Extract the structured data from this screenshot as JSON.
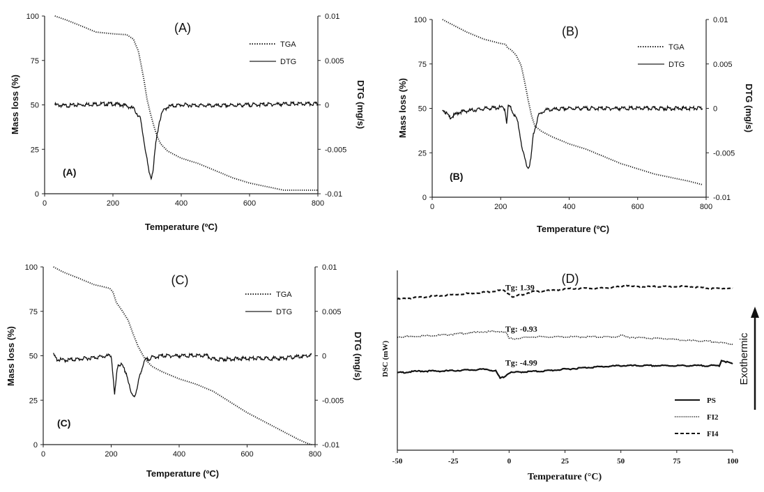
{
  "chart_data": [
    {
      "id": "A",
      "type": "line",
      "title": "(A)",
      "inner_label": "(A)",
      "xlabel": "Temperature (ºC)",
      "ylabel": "Mass loss (%)",
      "y2label": "DTG  (mg/s)",
      "xlim": [
        0,
        800
      ],
      "ylim": [
        0,
        100
      ],
      "y2lim": [
        -0.01,
        0.01
      ],
      "xticks": [
        "0",
        "200",
        "400",
        "600",
        "800"
      ],
      "yticks": [
        "0",
        "25",
        "50",
        "75",
        "100"
      ],
      "y2ticks": [
        "-0.01",
        "-0.005",
        "0",
        "0.005",
        "0.01"
      ],
      "legend": [
        "TGA",
        "DTG"
      ],
      "series": [
        {
          "name": "TGA",
          "axis": "left",
          "x": [
            30,
            60,
            100,
            150,
            200,
            240,
            260,
            275,
            290,
            300,
            310,
            320,
            330,
            340,
            360,
            400,
            450,
            500,
            550,
            600,
            650,
            700,
            750,
            800
          ],
          "y": [
            100,
            98,
            95,
            91,
            90,
            89.5,
            87,
            80,
            65,
            53,
            45,
            38,
            32,
            28,
            24,
            20,
            17,
            13,
            9,
            6,
            4,
            2,
            2,
            2
          ]
        },
        {
          "name": "DTG",
          "axis": "right",
          "x": [
            30,
            60,
            100,
            150,
            200,
            230,
            260,
            280,
            295,
            305,
            312,
            318,
            325,
            335,
            345,
            360,
            400,
            500,
            600,
            700,
            800
          ],
          "y": [
            0,
            -0.0001,
            0,
            0.0001,
            0.0001,
            0,
            -0.0004,
            -0.0015,
            -0.005,
            -0.0075,
            -0.0082,
            -0.0072,
            -0.0045,
            -0.002,
            -0.0008,
            -0.0002,
            0,
            -0.0001,
            0,
            0.0001,
            0.0001
          ]
        }
      ]
    },
    {
      "id": "B",
      "type": "line",
      "title": "(B)",
      "inner_label": "(B)",
      "xlabel": "Temperature (ºC)",
      "ylabel": "Mass loss (%)",
      "y2label": "DTG  (mg/s)",
      "xlim": [
        0,
        800
      ],
      "ylim": [
        0,
        100
      ],
      "y2lim": [
        -0.01,
        0.01
      ],
      "xticks": [
        "0",
        "200",
        "400",
        "600",
        "800"
      ],
      "yticks": [
        "0",
        "25",
        "50",
        "75",
        "100"
      ],
      "y2ticks": [
        "-0.01",
        "-0.005",
        "0",
        "0.005",
        "0.01"
      ],
      "legend": [
        "TGA",
        "DTG"
      ],
      "series": [
        {
          "name": "TGA",
          "axis": "left",
          "x": [
            30,
            60,
            100,
            150,
            200,
            215,
            220,
            230,
            245,
            260,
            270,
            280,
            290,
            300,
            320,
            350,
            400,
            450,
            500,
            550,
            600,
            650,
            700,
            750,
            790
          ],
          "y": [
            100,
            97,
            93,
            89,
            86.5,
            86,
            84,
            83,
            80,
            74,
            65,
            55,
            46,
            40,
            37,
            34,
            30,
            27,
            23,
            19,
            16,
            13,
            11,
            9,
            7
          ]
        },
        {
          "name": "DTG",
          "axis": "right",
          "x": [
            30,
            40,
            50,
            60,
            80,
            120,
            160,
            200,
            212,
            218,
            222,
            230,
            250,
            265,
            275,
            280,
            288,
            295,
            310,
            330,
            400,
            500,
            600,
            700,
            790
          ],
          "y": [
            0,
            -0.0005,
            -0.001,
            -0.0009,
            -0.0004,
            -0.0002,
            0,
            0.0001,
            0,
            -0.0017,
            0.0003,
            0,
            -0.0015,
            -0.005,
            -0.0062,
            -0.0068,
            -0.0058,
            -0.003,
            -0.0008,
            -0.0002,
            0,
            0,
            0,
            0,
            0
          ]
        }
      ]
    },
    {
      "id": "C",
      "type": "line",
      "title": "(C)",
      "inner_label": "(C)",
      "xlabel": "Temperature (ºC)",
      "ylabel": "Mass loss (%)",
      "y2label": "DTG  (mg/s)",
      "xlim": [
        0,
        800
      ],
      "ylim": [
        0,
        100
      ],
      "y2lim": [
        -0.01,
        0.01
      ],
      "xticks": [
        "0",
        "200",
        "400",
        "600",
        "800"
      ],
      "yticks": [
        "0",
        "25",
        "50",
        "75",
        "100"
      ],
      "y2ticks": [
        "-0.01",
        "-0.005",
        "0",
        "0.005",
        "0.01"
      ],
      "legend": [
        "TGA",
        "DTG"
      ],
      "series": [
        {
          "name": "TGA",
          "axis": "left",
          "x": [
            30,
            60,
            100,
            150,
            195,
            205,
            215,
            230,
            250,
            265,
            280,
            300,
            320,
            350,
            400,
            450,
            500,
            550,
            600,
            650,
            700,
            750,
            780,
            790
          ],
          "y": [
            100,
            97,
            94,
            90,
            88,
            86,
            80,
            76,
            70,
            62,
            55,
            48,
            44,
            41,
            37,
            34,
            30,
            24,
            18,
            13,
            8,
            3,
            0.5,
            0
          ]
        },
        {
          "name": "DTG",
          "axis": "right",
          "x": [
            30,
            40,
            60,
            100,
            150,
            195,
            200,
            205,
            210,
            215,
            220,
            230,
            245,
            258,
            268,
            275,
            285,
            300,
            320,
            350,
            400,
            480,
            500,
            520,
            600,
            700,
            780,
            790
          ],
          "y": [
            0.0001,
            -0.0004,
            -0.0005,
            -0.0004,
            -0.0002,
            0,
            0.0001,
            -0.002,
            -0.0045,
            -0.0025,
            -0.001,
            -0.001,
            -0.002,
            -0.0042,
            -0.0045,
            -0.004,
            -0.002,
            -0.0005,
            -0.0002,
            0,
            0,
            0,
            -0.0004,
            -0.0004,
            -0.0003,
            -0.0003,
            0,
            0.0001
          ]
        }
      ]
    },
    {
      "id": "D",
      "type": "line",
      "title": "(D)",
      "xlabel": "Temperature (°C)",
      "ylabel": "DSC (mW)",
      "side_label": "Exothermic",
      "xlim": [
        -50,
        100
      ],
      "ylim": [
        0,
        1
      ],
      "xticks": [
        "-50",
        "-25",
        "0",
        "25",
        "50",
        "75",
        "100"
      ],
      "legend": [
        "PS",
        "FI2",
        "FI4"
      ],
      "annotations": [
        {
          "text": "Tg: 1.39",
          "x": 2
        },
        {
          "text": "Tg: -0.93",
          "x": 2
        },
        {
          "text": "Tg: -4.99",
          "x": 2
        }
      ],
      "series": [
        {
          "name": "FI4",
          "x": [
            -50,
            -40,
            -30,
            -20,
            -10,
            -3,
            0,
            2,
            4,
            10,
            20,
            30,
            40,
            50,
            52,
            55,
            60,
            70,
            80,
            90,
            100
          ],
          "y": [
            0.84,
            0.85,
            0.86,
            0.87,
            0.88,
            0.89,
            0.87,
            0.85,
            0.86,
            0.88,
            0.89,
            0.9,
            0.9,
            0.91,
            0.92,
            0.91,
            0.91,
            0.91,
            0.91,
            0.9,
            0.9
          ]
        },
        {
          "name": "FI2",
          "x": [
            -50,
            -40,
            -30,
            -20,
            -10,
            -3,
            -1,
            0,
            2,
            10,
            20,
            30,
            40,
            48,
            50,
            52,
            60,
            70,
            80,
            90,
            100
          ],
          "y": [
            0.63,
            0.635,
            0.64,
            0.65,
            0.66,
            0.66,
            0.65,
            0.62,
            0.62,
            0.63,
            0.63,
            0.63,
            0.63,
            0.63,
            0.64,
            0.63,
            0.625,
            0.62,
            0.61,
            0.605,
            0.59
          ]
        },
        {
          "name": "PS",
          "x": [
            -50,
            -40,
            -30,
            -20,
            -10,
            -6,
            -4,
            -2,
            0,
            5,
            15,
            25,
            35,
            50,
            70,
            90,
            94,
            95,
            100
          ],
          "y": [
            0.43,
            0.44,
            0.44,
            0.445,
            0.45,
            0.44,
            0.4,
            0.41,
            0.43,
            0.435,
            0.44,
            0.45,
            0.46,
            0.47,
            0.47,
            0.47,
            0.47,
            0.5,
            0.48
          ]
        }
      ]
    }
  ]
}
